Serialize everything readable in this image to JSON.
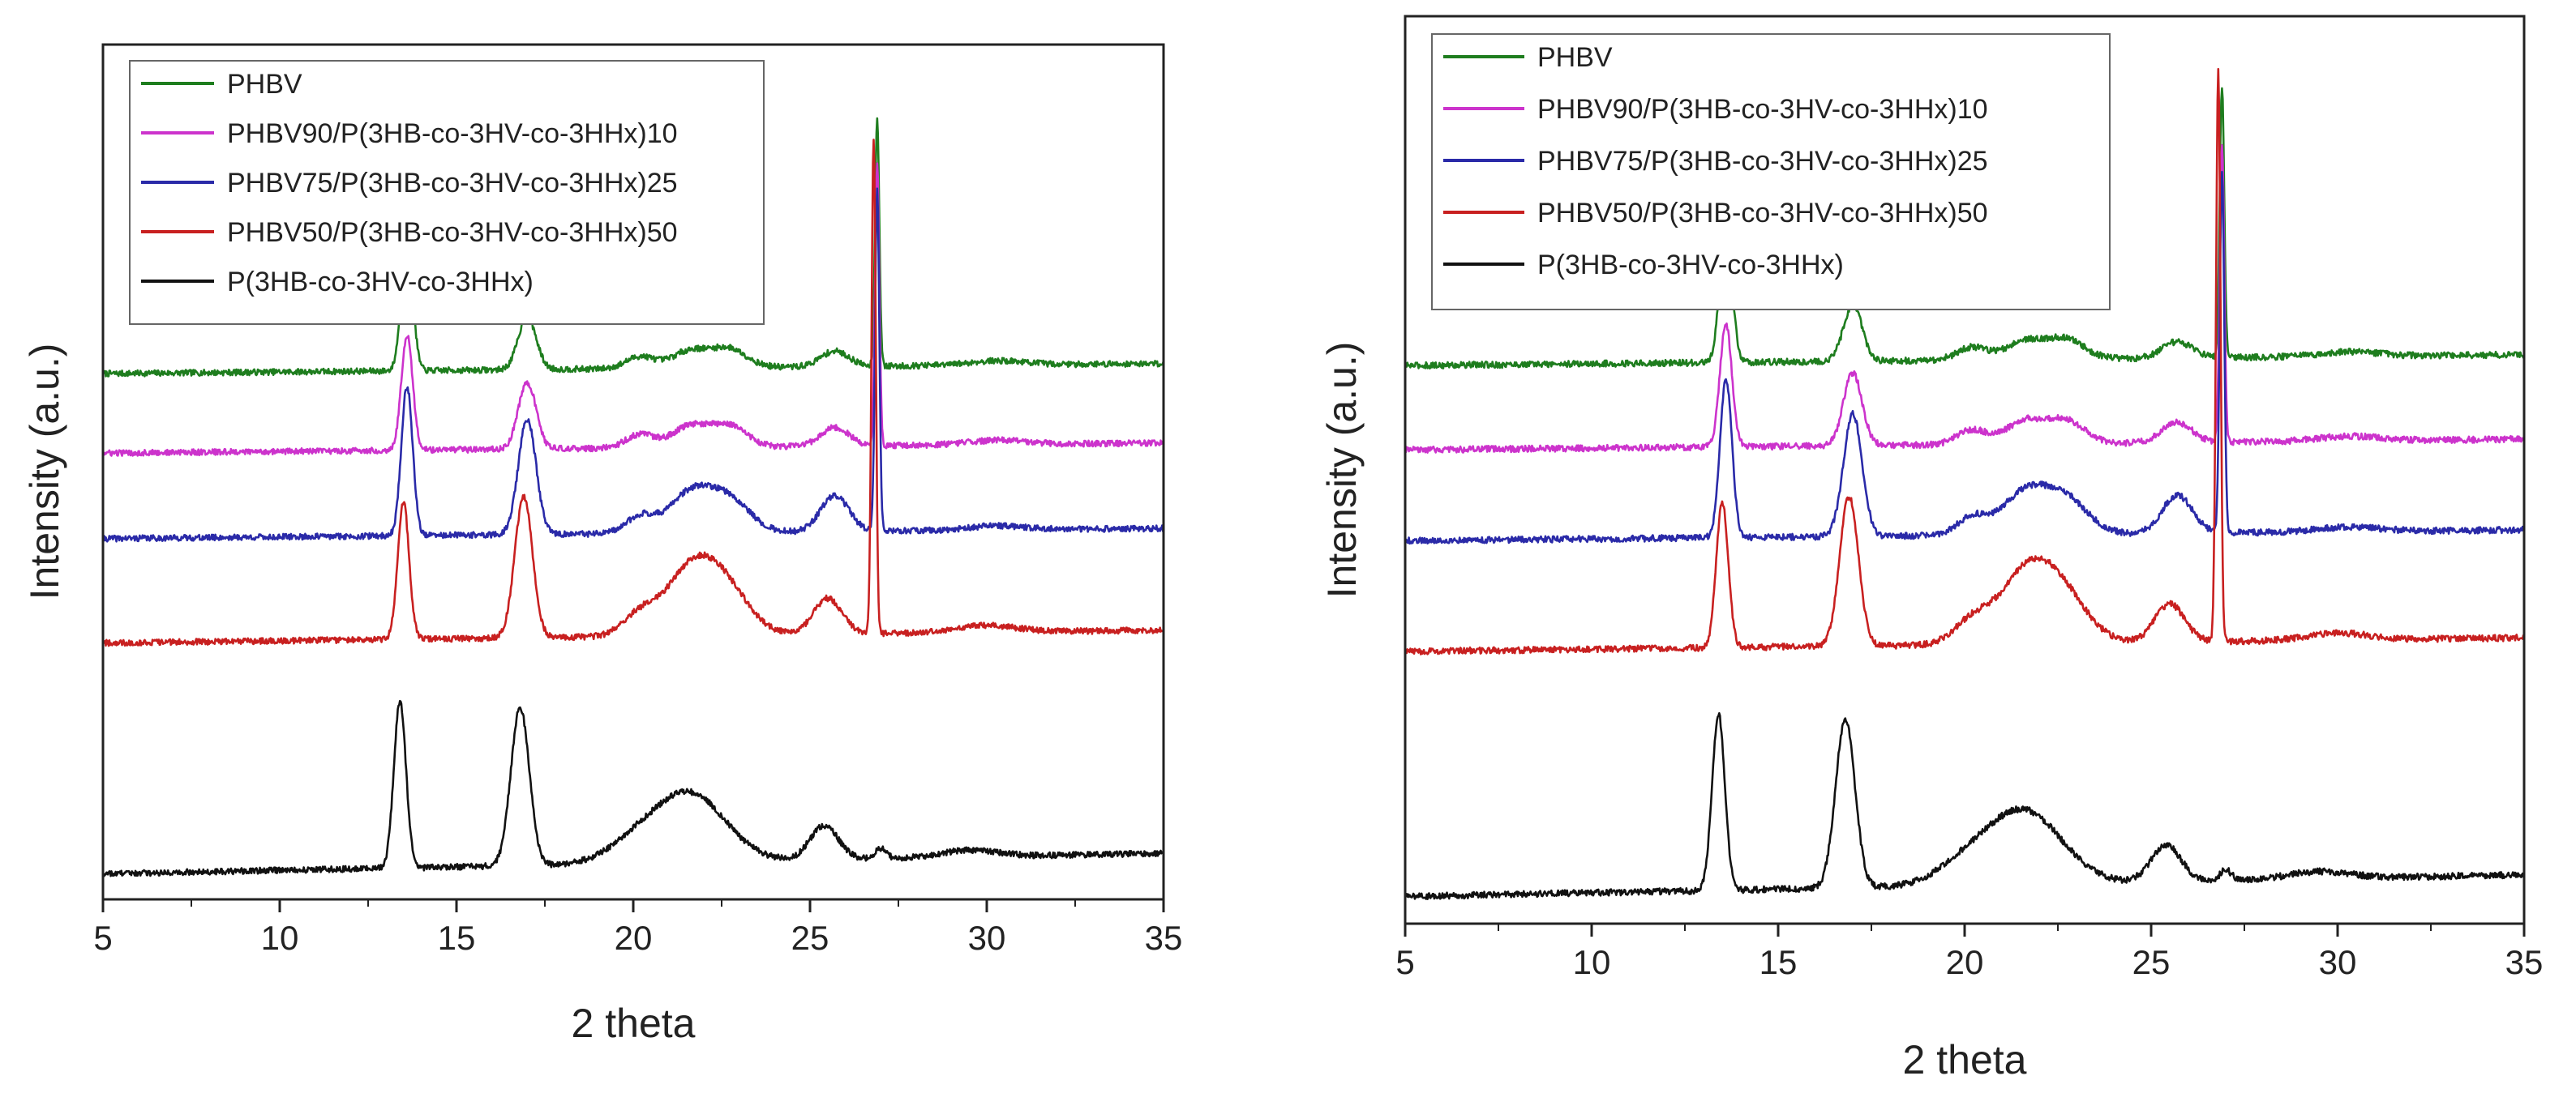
{
  "figure": {
    "background": "#ffffff"
  },
  "chart_data": [
    {
      "type": "line",
      "title": "",
      "xlabel": "2 theta",
      "ylabel": "Intensity (a.u.)",
      "xlim": [
        5,
        35
      ],
      "ylim": [
        0,
        10
      ],
      "xticks": [
        5,
        10,
        15,
        20,
        25,
        30,
        35
      ],
      "xtick_labels": [
        "5",
        "10",
        "15",
        "20",
        "25",
        "30",
        "35"
      ],
      "yticks_shown": false,
      "legend_position": "top-left",
      "series": [
        {
          "name": "PHBV",
          "color": "#1e7d1e",
          "baseline": 6.15,
          "slope": 0.004,
          "peaks": [
            {
              "x": 13.6,
              "h": 1.55,
              "w": 0.16
            },
            {
              "x": 17.0,
              "h": 0.62,
              "w": 0.25
            },
            {
              "x": 20.2,
              "h": 0.14,
              "w": 0.4
            },
            {
              "x": 21.6,
              "h": 0.2,
              "w": 0.5
            },
            {
              "x": 22.7,
              "h": 0.22,
              "w": 0.5
            },
            {
              "x": 25.7,
              "h": 0.18,
              "w": 0.4
            },
            {
              "x": 26.9,
              "h": 2.9,
              "w": 0.06
            },
            {
              "x": 30.3,
              "h": 0.05,
              "w": 0.8
            }
          ]
        },
        {
          "name": "PHBV90/P(3HB-co-3HV-co-3HHx)10",
          "color": "#cc33cc",
          "baseline": 5.22,
          "slope": 0.004,
          "peaks": [
            {
              "x": 13.6,
              "h": 1.35,
              "w": 0.16
            },
            {
              "x": 17.0,
              "h": 0.78,
              "w": 0.25
            },
            {
              "x": 20.2,
              "h": 0.16,
              "w": 0.4
            },
            {
              "x": 21.6,
              "h": 0.25,
              "w": 0.5
            },
            {
              "x": 22.7,
              "h": 0.25,
              "w": 0.5
            },
            {
              "x": 25.7,
              "h": 0.22,
              "w": 0.4
            },
            {
              "x": 26.9,
              "h": 3.3,
              "w": 0.06
            },
            {
              "x": 30.3,
              "h": 0.05,
              "w": 0.8
            }
          ]
        },
        {
          "name": "PHBV75/P(3HB-co-3HV-co-3HHx)25",
          "color": "#2a2aa8",
          "baseline": 4.22,
          "slope": 0.004,
          "peaks": [
            {
              "x": 13.6,
              "h": 1.75,
              "w": 0.16
            },
            {
              "x": 17.0,
              "h": 1.35,
              "w": 0.25
            },
            {
              "x": 20.2,
              "h": 0.2,
              "w": 0.4
            },
            {
              "x": 21.6,
              "h": 0.45,
              "w": 0.6
            },
            {
              "x": 22.7,
              "h": 0.38,
              "w": 0.6
            },
            {
              "x": 25.7,
              "h": 0.42,
              "w": 0.4
            },
            {
              "x": 26.9,
              "h": 4.0,
              "w": 0.06
            },
            {
              "x": 30.3,
              "h": 0.05,
              "w": 0.8
            }
          ]
        },
        {
          "name": "PHBV50/P(3HB-co-3HV-co-3HHx)50",
          "color": "#c82020",
          "baseline": 3.0,
          "slope": 0.005,
          "peaks": [
            {
              "x": 13.5,
              "h": 1.6,
              "w": 0.16
            },
            {
              "x": 16.9,
              "h": 1.65,
              "w": 0.25
            },
            {
              "x": 20.2,
              "h": 0.25,
              "w": 0.5
            },
            {
              "x": 21.6,
              "h": 0.7,
              "w": 0.7
            },
            {
              "x": 22.6,
              "h": 0.5,
              "w": 0.7
            },
            {
              "x": 25.5,
              "h": 0.42,
              "w": 0.4
            },
            {
              "x": 26.8,
              "h": 5.8,
              "w": 0.06
            },
            {
              "x": 30.0,
              "h": 0.08,
              "w": 0.8
            }
          ]
        },
        {
          "name": "P(3HB-co-3HV-co-3HHx)",
          "color": "#111111",
          "baseline": 0.3,
          "slope": 0.008,
          "peaks": [
            {
              "x": 13.4,
              "h": 1.95,
              "w": 0.17
            },
            {
              "x": 16.8,
              "h": 1.85,
              "w": 0.26
            },
            {
              "x": 20.0,
              "h": 0.2,
              "w": 0.8
            },
            {
              "x": 21.6,
              "h": 0.8,
              "w": 1.0
            },
            {
              "x": 25.4,
              "h": 0.4,
              "w": 0.4
            },
            {
              "x": 27.0,
              "h": 0.12,
              "w": 0.15
            },
            {
              "x": 29.5,
              "h": 0.08,
              "w": 0.8
            }
          ]
        }
      ]
    },
    {
      "type": "line",
      "title": "",
      "xlabel": "2 theta",
      "ylabel": "Intensity (a.u.)",
      "xlim": [
        5,
        35
      ],
      "ylim": [
        0,
        10
      ],
      "xticks": [
        5,
        10,
        15,
        20,
        25,
        30,
        35
      ],
      "xtick_labels": [
        "5",
        "10",
        "15",
        "20",
        "25",
        "30",
        "35"
      ],
      "yticks_shown": false,
      "legend_position": "top-left",
      "series": [
        {
          "name": "PHBV",
          "color": "#1e7d1e",
          "baseline": 6.15,
          "slope": 0.004,
          "peaks": [
            {
              "x": 13.6,
              "h": 1.55,
              "w": 0.16
            },
            {
              "x": 17.0,
              "h": 0.62,
              "w": 0.25
            },
            {
              "x": 20.2,
              "h": 0.14,
              "w": 0.4
            },
            {
              "x": 21.6,
              "h": 0.2,
              "w": 0.5
            },
            {
              "x": 22.7,
              "h": 0.22,
              "w": 0.5
            },
            {
              "x": 25.7,
              "h": 0.18,
              "w": 0.4
            },
            {
              "x": 26.9,
              "h": 3.0,
              "w": 0.06
            },
            {
              "x": 30.3,
              "h": 0.05,
              "w": 0.8
            }
          ]
        },
        {
          "name": "PHBV90/P(3HB-co-3HV-co-3HHx)10",
          "color": "#cc33cc",
          "baseline": 5.22,
          "slope": 0.004,
          "peaks": [
            {
              "x": 13.6,
              "h": 1.35,
              "w": 0.16
            },
            {
              "x": 17.0,
              "h": 0.8,
              "w": 0.25
            },
            {
              "x": 20.2,
              "h": 0.16,
              "w": 0.4
            },
            {
              "x": 21.6,
              "h": 0.25,
              "w": 0.5
            },
            {
              "x": 22.7,
              "h": 0.25,
              "w": 0.5
            },
            {
              "x": 25.7,
              "h": 0.22,
              "w": 0.4
            },
            {
              "x": 26.9,
              "h": 3.3,
              "w": 0.06
            },
            {
              "x": 30.3,
              "h": 0.05,
              "w": 0.8
            }
          ]
        },
        {
          "name": "PHBV75/P(3HB-co-3HV-co-3HHx)25",
          "color": "#2a2aa8",
          "baseline": 4.22,
          "slope": 0.004,
          "peaks": [
            {
              "x": 13.6,
              "h": 1.75,
              "w": 0.16
            },
            {
              "x": 17.0,
              "h": 1.35,
              "w": 0.25
            },
            {
              "x": 20.2,
              "h": 0.2,
              "w": 0.4
            },
            {
              "x": 21.6,
              "h": 0.45,
              "w": 0.6
            },
            {
              "x": 22.7,
              "h": 0.38,
              "w": 0.6
            },
            {
              "x": 25.7,
              "h": 0.42,
              "w": 0.4
            },
            {
              "x": 26.9,
              "h": 4.0,
              "w": 0.06
            },
            {
              "x": 30.3,
              "h": 0.05,
              "w": 0.8
            }
          ]
        },
        {
          "name": "PHBV50/P(3HB-co-3HV-co-3HHx)50",
          "color": "#c82020",
          "baseline": 3.0,
          "slope": 0.005,
          "peaks": [
            {
              "x": 13.5,
              "h": 1.6,
              "w": 0.16
            },
            {
              "x": 16.9,
              "h": 1.65,
              "w": 0.25
            },
            {
              "x": 20.2,
              "h": 0.25,
              "w": 0.5
            },
            {
              "x": 21.6,
              "h": 0.7,
              "w": 0.7
            },
            {
              "x": 22.6,
              "h": 0.5,
              "w": 0.7
            },
            {
              "x": 25.5,
              "h": 0.42,
              "w": 0.4
            },
            {
              "x": 26.8,
              "h": 6.3,
              "w": 0.06
            },
            {
              "x": 30.0,
              "h": 0.08,
              "w": 0.8
            }
          ]
        },
        {
          "name": "P(3HB-co-3HV-co-3HHx)",
          "color": "#111111",
          "baseline": 0.3,
          "slope": 0.008,
          "peaks": [
            {
              "x": 13.4,
              "h": 1.95,
              "w": 0.17
            },
            {
              "x": 16.8,
              "h": 1.85,
              "w": 0.26
            },
            {
              "x": 20.0,
              "h": 0.2,
              "w": 0.8
            },
            {
              "x": 21.6,
              "h": 0.8,
              "w": 1.0
            },
            {
              "x": 25.4,
              "h": 0.4,
              "w": 0.4
            },
            {
              "x": 27.0,
              "h": 0.12,
              "w": 0.15
            },
            {
              "x": 29.5,
              "h": 0.08,
              "w": 0.8
            }
          ]
        }
      ]
    }
  ]
}
